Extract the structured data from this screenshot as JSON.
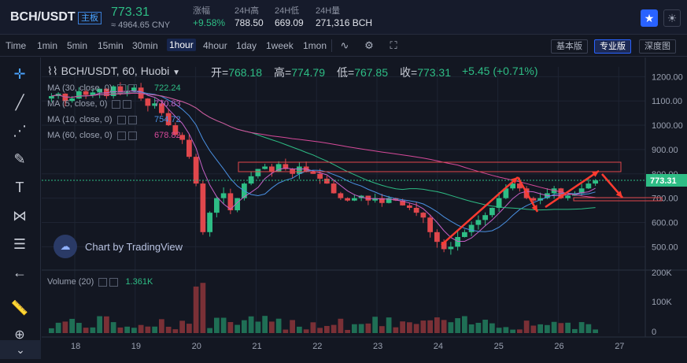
{
  "header": {
    "pair": "BCH/USDT",
    "badge": "主板",
    "price": "773.31",
    "cny": "≈ 4964.65 CNY",
    "stats": [
      {
        "label": "涨幅",
        "value": "+9.58%",
        "up": true
      },
      {
        "label": "24H高",
        "value": "788.50"
      },
      {
        "label": "24H低",
        "value": "669.09"
      },
      {
        "label": "24H量",
        "value": "271,316 BCH"
      }
    ],
    "star_icon": "star-icon",
    "theme_icon": "sun-icon"
  },
  "toolbar": {
    "timeframes": [
      "Time",
      "1min",
      "5min",
      "15min",
      "30min",
      "1hour",
      "4hour",
      "1day",
      "1week",
      "1mon"
    ],
    "active_timeframe": "1hour",
    "icons": [
      "indicator-icon",
      "settings-icon",
      "fullscreen-icon"
    ],
    "views": [
      "基本版",
      "专业版",
      "深度图"
    ],
    "active_view": "专业版"
  },
  "left_tools": [
    "crosshair-icon",
    "trend-line-icon",
    "fib-icon",
    "brush-icon",
    "text-icon",
    "pattern-icon",
    "measure-icon",
    "back-arrow-icon",
    "ruler-icon",
    "zoom-icon"
  ],
  "legend": {
    "title": "BCH/USDT, 60, Huobi",
    "ohlc": [
      {
        "k": "开=",
        "v": "768.18"
      },
      {
        "k": "高=",
        "v": "774.79"
      },
      {
        "k": "低=",
        "v": "767.85"
      },
      {
        "k": "收=",
        "v": "773.31"
      },
      {
        "k": "",
        "v": "+5.45 (+0.71%)"
      }
    ],
    "mas": [
      {
        "label": "MA (30, close, 0)",
        "value": "722.24",
        "color": "#2ebd85"
      },
      {
        "label": "MA (5, close, 0)",
        "value": "770.83",
        "color": "#c561c6"
      },
      {
        "label": "MA (10, close, 0)",
        "value": "754.72",
        "color": "#4a90e2"
      },
      {
        "label": "MA (60, close, 0)",
        "value": "678.82",
        "color": "#d64a9a"
      }
    ]
  },
  "watermark": "Chart by TradingView",
  "volume": {
    "label": "Volume (20)",
    "value": "1.361K"
  },
  "chart_data": {
    "type": "candlestick",
    "price_axis": [
      "1200.00",
      "1100.00",
      "1000.00",
      "900.00",
      "800.00",
      "700.00",
      "600.00",
      "500.00"
    ],
    "price_ylim": [
      420,
      1240
    ],
    "current_price": "773.31",
    "volume_axis": [
      "200K",
      "100K",
      "0"
    ],
    "x_labels": [
      "18",
      "19",
      "20",
      "21",
      "22",
      "23",
      "24",
      "25",
      "26",
      "27"
    ],
    "closes": [
      1120,
      1130,
      1100,
      1110,
      1140,
      1125,
      1135,
      1150,
      1120,
      1160,
      1130,
      1140,
      1155,
      1110,
      1080,
      1090,
      1050,
      1000,
      960,
      940,
      870,
      760,
      560,
      640,
      700,
      720,
      650,
      700,
      760,
      790,
      820,
      830,
      810,
      840,
      820,
      800,
      830,
      810,
      800,
      780,
      760,
      720,
      700,
      690,
      700,
      710,
      690,
      700,
      680,
      700,
      690,
      670,
      660,
      640,
      620,
      560,
      520,
      490,
      500,
      540,
      560,
      590,
      610,
      630,
      660,
      700,
      740,
      760,
      740,
      700,
      690,
      700,
      720,
      740,
      700,
      710,
      720,
      740,
      760,
      773
    ]
  }
}
